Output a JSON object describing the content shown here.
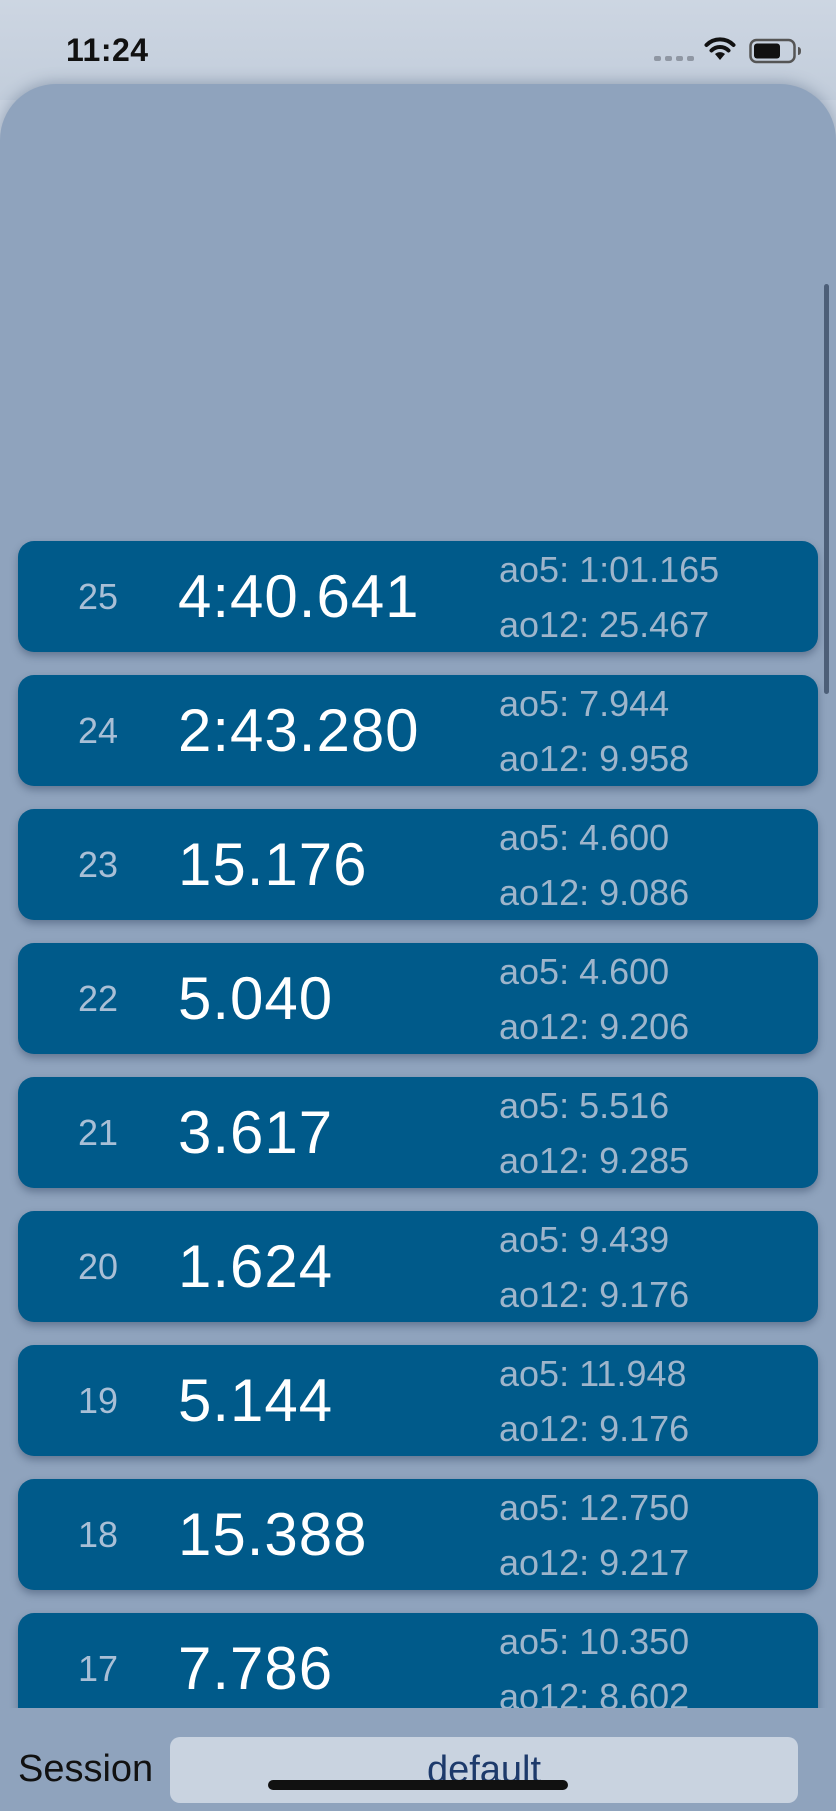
{
  "status_bar": {
    "time": "11:24",
    "icons": [
      "cellular-signal-icon",
      "wifi-icon",
      "battery-icon"
    ]
  },
  "solves": [
    {
      "index": "25",
      "time": "4:40.641",
      "ao5": "ao5: 1:01.165",
      "ao12": "ao12: 25.467"
    },
    {
      "index": "24",
      "time": "2:43.280",
      "ao5": "ao5: 7.944",
      "ao12": "ao12: 9.958"
    },
    {
      "index": "23",
      "time": "15.176",
      "ao5": "ao5: 4.600",
      "ao12": "ao12: 9.086"
    },
    {
      "index": "22",
      "time": "5.040",
      "ao5": "ao5: 4.600",
      "ao12": "ao12: 9.206"
    },
    {
      "index": "21",
      "time": "3.617",
      "ao5": "ao5: 5.516",
      "ao12": "ao12: 9.285"
    },
    {
      "index": "20",
      "time": "1.624",
      "ao5": "ao5: 9.439",
      "ao12": "ao12: 9.176"
    },
    {
      "index": "19",
      "time": "5.144",
      "ao5": "ao5: 11.948",
      "ao12": "ao12: 9.176"
    },
    {
      "index": "18",
      "time": "15.388",
      "ao5": "ao5: 12.750",
      "ao12": "ao12: 9.217"
    },
    {
      "index": "17",
      "time": "7.786",
      "ao5": "ao5: 10.350",
      "ao12": "ao12: 8.602"
    }
  ],
  "footer": {
    "session_label": "Session",
    "session_value": "default"
  },
  "colors": {
    "background": "#c9d3e0",
    "sheet": "#8fa3bd",
    "row": "#005a8a",
    "time_text": "#ffffff",
    "secondary_text": "#9eb5cb"
  }
}
